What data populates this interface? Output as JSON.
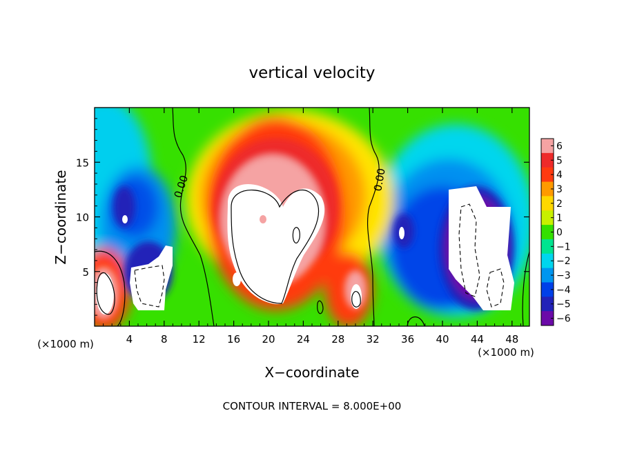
{
  "chart_data": {
    "type": "heatmap",
    "title": "vertical velocity",
    "xlabel": "X−coordinate",
    "ylabel": "Z−coordinate",
    "x_unit": "(×1000 m)",
    "x_unit_right": "(×1000 m)",
    "xlim": [
      0,
      50
    ],
    "ylim": [
      0,
      20
    ],
    "x_ticks": [
      4,
      8,
      12,
      16,
      20,
      24,
      28,
      32,
      36,
      40,
      44,
      48
    ],
    "x_tick_labels": [
      "4",
      "8",
      "12",
      "16",
      "20",
      "24",
      "28",
      "32",
      "36",
      "40",
      "44",
      "48"
    ],
    "y_ticks": [
      5,
      10,
      15
    ],
    "y_tick_labels": [
      "5",
      "10",
      "15"
    ],
    "colorbar": {
      "levels": [
        6,
        5,
        4,
        3,
        2,
        1,
        0,
        -1,
        -2,
        -3,
        -4,
        -5,
        -6
      ],
      "labels": [
        "6",
        "5",
        "4",
        "3",
        "2",
        "1",
        "0",
        "−1",
        "−2",
        "−3",
        "−4",
        "−5",
        "−6"
      ],
      "colors": [
        "#f5a3a3",
        "#ee2a2a",
        "#ff3a10",
        "#ff9a00",
        "#ffd800",
        "#c8f000",
        "#34e000",
        "#00e490",
        "#00d6ee",
        "#0096f0",
        "#0040e8",
        "#2222b8",
        "#6b0aa8"
      ]
    },
    "contour_labels": [
      {
        "text": "0.00",
        "x": 9.5,
        "z": 12.3
      },
      {
        "text": "0.00",
        "x": 32.7,
        "z": 13.5
      }
    ],
    "footer": "CONTOUR INTERVAL = 8.000E+00",
    "grid": false,
    "legend": "colorbar-right"
  }
}
